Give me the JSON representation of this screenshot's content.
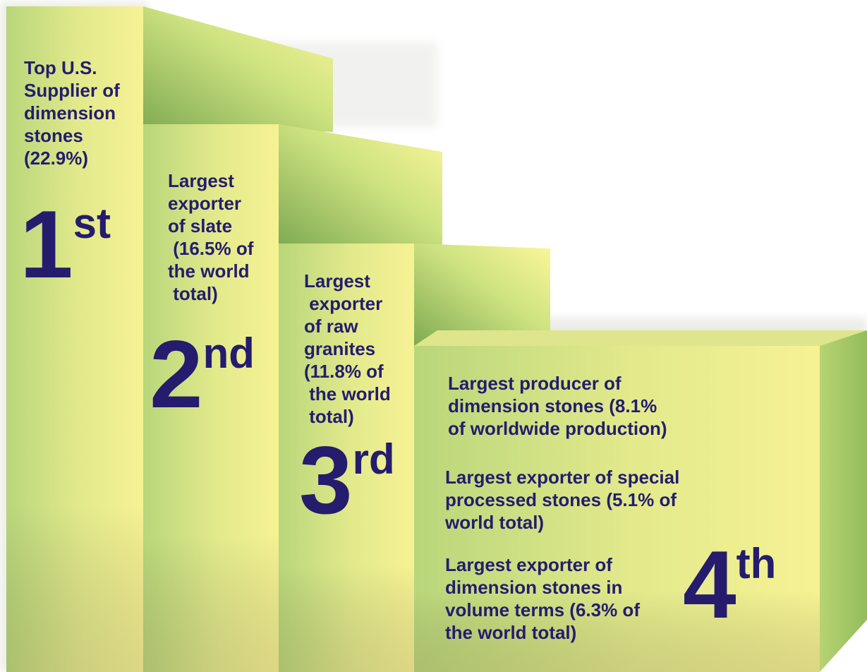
{
  "steps": [
    {
      "rank_number": "1",
      "rank_suffix": "st",
      "lines": [
        "Top U.S.",
        "Supplier of",
        "dimension",
        "stones",
        "(22.9%)"
      ]
    },
    {
      "rank_number": "2",
      "rank_suffix": "nd",
      "lines": [
        "Largest",
        "exporter",
        "of slate",
        " (16.5% of",
        "the world",
        " total)"
      ]
    },
    {
      "rank_number": "3",
      "rank_suffix": "rd",
      "lines": [
        "Largest",
        " exporter",
        "of raw",
        "granites",
        "(11.8% of",
        " the world",
        " total)"
      ]
    },
    {
      "rank_number": "4",
      "rank_suffix": "th",
      "blocks": [
        {
          "lines": [
            "Largest producer of",
            "dimension stones (8.1%",
            "of worldwide production)"
          ]
        },
        {
          "lines": [
            "Largest exporter of special",
            "processed stones (5.1% of",
            "world total)"
          ]
        },
        {
          "lines": [
            "Largest exporter of",
            "dimension stones in",
            "volume terms (6.3% of",
            "the world total)"
          ]
        }
      ]
    }
  ],
  "colors": {
    "text": "#251c6e",
    "face_light": "#f4f28e",
    "face_mid": "#b7d67a",
    "top_light": "#fbf79a",
    "top_dark": "#8fb25a"
  }
}
